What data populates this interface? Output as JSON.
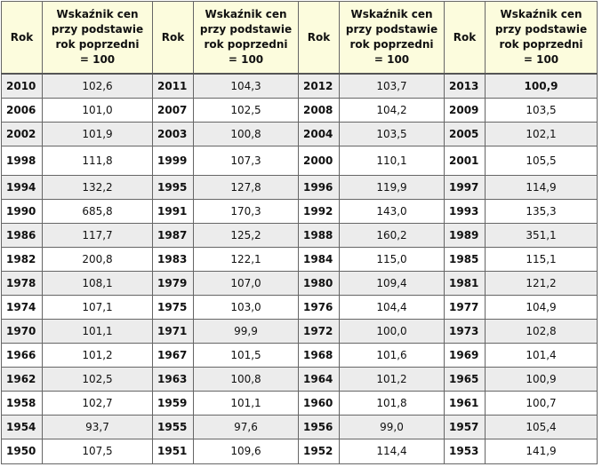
{
  "header": {
    "year_label": "Rok",
    "index_label_lines": [
      "Wskaźnik cen",
      "przy podstawie",
      "rok poprzedni",
      "= 100"
    ]
  },
  "rows": [
    {
      "cells": [
        [
          "2010",
          "102,6"
        ],
        [
          "2011",
          "104,3"
        ],
        [
          "2012",
          "103,7"
        ],
        [
          "2013",
          "100,9"
        ]
      ]
    },
    {
      "cells": [
        [
          "2006",
          "101,0"
        ],
        [
          "2007",
          "102,5"
        ],
        [
          "2008",
          "104,2"
        ],
        [
          "2009",
          "103,5"
        ]
      ]
    },
    {
      "cells": [
        [
          "2002",
          "101,9"
        ],
        [
          "2003",
          "100,8"
        ],
        [
          "2004",
          "103,5"
        ],
        [
          "2005",
          "102,1"
        ]
      ]
    },
    {
      "cells": [
        [
          "1998",
          "111,8"
        ],
        [
          "1999",
          "107,3"
        ],
        [
          "2000",
          "110,1"
        ],
        [
          "2001",
          "105,5"
        ]
      ]
    },
    {
      "cells": [
        [
          "1994",
          "132,2"
        ],
        [
          "1995",
          "127,8"
        ],
        [
          "1996",
          "119,9"
        ],
        [
          "1997",
          "114,9"
        ]
      ]
    },
    {
      "cells": [
        [
          "1990",
          "685,8"
        ],
        [
          "1991",
          "170,3"
        ],
        [
          "1992",
          "143,0"
        ],
        [
          "1993",
          "135,3"
        ]
      ]
    },
    {
      "cells": [
        [
          "1986",
          "117,7"
        ],
        [
          "1987",
          "125,2"
        ],
        [
          "1988",
          "160,2"
        ],
        [
          "1989",
          "351,1"
        ]
      ]
    },
    {
      "cells": [
        [
          "1982",
          "200,8"
        ],
        [
          "1983",
          "122,1"
        ],
        [
          "1984",
          "115,0"
        ],
        [
          "1985",
          "115,1"
        ]
      ]
    },
    {
      "cells": [
        [
          "1978",
          "108,1"
        ],
        [
          "1979",
          "107,0"
        ],
        [
          "1980",
          "109,4"
        ],
        [
          "1981",
          "121,2"
        ]
      ]
    },
    {
      "cells": [
        [
          "1974",
          "107,1"
        ],
        [
          "1975",
          "103,0"
        ],
        [
          "1976",
          "104,4"
        ],
        [
          "1977",
          "104,9"
        ]
      ]
    },
    {
      "cells": [
        [
          "1970",
          "101,1"
        ],
        [
          "1971",
          "99,9"
        ],
        [
          "1972",
          "100,0"
        ],
        [
          "1973",
          "102,8"
        ]
      ]
    },
    {
      "cells": [
        [
          "1966",
          "101,2"
        ],
        [
          "1967",
          "101,5"
        ],
        [
          "1968",
          "101,6"
        ],
        [
          "1969",
          "101,4"
        ]
      ]
    },
    {
      "cells": [
        [
          "1962",
          "102,5"
        ],
        [
          "1963",
          "100,8"
        ],
        [
          "1964",
          "101,2"
        ],
        [
          "1965",
          "100,9"
        ]
      ]
    },
    {
      "cells": [
        [
          "1958",
          "102,7"
        ],
        [
          "1959",
          "101,1"
        ],
        [
          "1960",
          "101,8"
        ],
        [
          "1961",
          "100,7"
        ]
      ]
    },
    {
      "cells": [
        [
          "1954",
          "93,7"
        ],
        [
          "1955",
          "97,6"
        ],
        [
          "1956",
          "99,0"
        ],
        [
          "1957",
          "105,4"
        ]
      ]
    },
    {
      "cells": [
        [
          "1950",
          "107,5"
        ],
        [
          "1951",
          "109,6"
        ],
        [
          "1952",
          "114,4"
        ],
        [
          "1953",
          "141,9"
        ]
      ]
    }
  ],
  "highlight": {
    "bold_value": "100,9"
  },
  "colors": {
    "header_background": "#fcfcdd",
    "shaded_row_background": "#ececec",
    "border": "#666666"
  }
}
